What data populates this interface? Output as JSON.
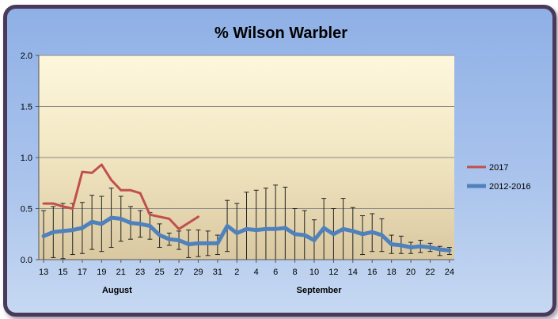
{
  "chart_data": {
    "type": "line",
    "title": "% Wilson Warbler",
    "xlabel": "",
    "ylabel": "",
    "ylim": [
      0,
      2.0
    ],
    "y_ticks": [
      "0.0",
      "0.5",
      "1.0",
      "1.5",
      "2.0"
    ],
    "grid": true,
    "legend_position": "right",
    "categories": [
      "13",
      "14",
      "15",
      "16",
      "17",
      "18",
      "19",
      "20",
      "21",
      "22",
      "23",
      "24",
      "25",
      "26",
      "27",
      "28",
      "29",
      "30",
      "31",
      "1",
      "2",
      "3",
      "4",
      "5",
      "6",
      "7",
      "8",
      "9",
      "10",
      "11",
      "12",
      "13",
      "14",
      "15",
      "16",
      "17",
      "18",
      "19",
      "20",
      "21",
      "22",
      "23",
      "24"
    ],
    "x_tick_labels": [
      "13",
      "15",
      "17",
      "19",
      "21",
      "23",
      "25",
      "27",
      "29",
      "31",
      "2",
      "4",
      "6",
      "8",
      "10",
      "12",
      "14",
      "16",
      "18",
      "20",
      "22",
      "24"
    ],
    "month_labels": [
      {
        "label": "August",
        "category_index": 7.6
      },
      {
        "label": "September",
        "category_index": 28.5
      }
    ],
    "series": [
      {
        "name": "2017",
        "color": "#c0504d",
        "values": [
          0.55,
          0.55,
          0.52,
          0.5,
          0.86,
          0.85,
          0.93,
          0.78,
          0.68,
          0.68,
          0.65,
          0.44,
          0.42,
          0.4,
          0.3,
          0.36,
          0.42,
          null,
          null,
          null,
          null,
          null,
          null,
          null,
          null,
          null,
          null,
          null,
          null,
          null,
          null,
          null,
          null,
          null,
          null,
          null,
          null,
          null,
          null,
          null,
          null,
          null,
          null
        ]
      },
      {
        "name": "2012-2016",
        "color": "#4f81bd",
        "values": [
          0.23,
          0.27,
          0.28,
          0.29,
          0.31,
          0.37,
          0.35,
          0.41,
          0.4,
          0.36,
          0.35,
          0.33,
          0.24,
          0.2,
          0.19,
          0.15,
          0.16,
          0.16,
          0.16,
          0.33,
          0.26,
          0.3,
          0.29,
          0.3,
          0.3,
          0.31,
          0.25,
          0.24,
          0.19,
          0.31,
          0.25,
          0.3,
          0.28,
          0.25,
          0.27,
          0.24,
          0.15,
          0.14,
          0.12,
          0.13,
          0.12,
          0.1,
          0.09
        ],
        "error_low": [
          0.0,
          0.02,
          0.01,
          0.05,
          0.06,
          0.1,
          0.08,
          0.12,
          0.18,
          0.2,
          0.22,
          0.2,
          0.12,
          0.14,
          0.1,
          0.02,
          0.03,
          0.04,
          0.05,
          0.08,
          0.0,
          0.0,
          0.0,
          0.0,
          0.0,
          0.0,
          0.0,
          0.0,
          0.0,
          0.0,
          0.0,
          0.0,
          0.0,
          0.05,
          0.08,
          0.08,
          0.06,
          0.06,
          0.06,
          0.07,
          0.08,
          0.04,
          0.05
        ],
        "error_high": [
          0.48,
          0.52,
          0.55,
          0.55,
          0.56,
          0.63,
          0.62,
          0.7,
          0.62,
          0.52,
          0.48,
          0.46,
          0.35,
          0.26,
          0.28,
          0.29,
          0.29,
          0.28,
          0.24,
          0.58,
          0.55,
          0.66,
          0.68,
          0.7,
          0.73,
          0.71,
          0.5,
          0.48,
          0.39,
          0.6,
          0.5,
          0.6,
          0.51,
          0.43,
          0.45,
          0.4,
          0.24,
          0.23,
          0.17,
          0.19,
          0.16,
          0.13,
          0.12
        ]
      }
    ]
  }
}
